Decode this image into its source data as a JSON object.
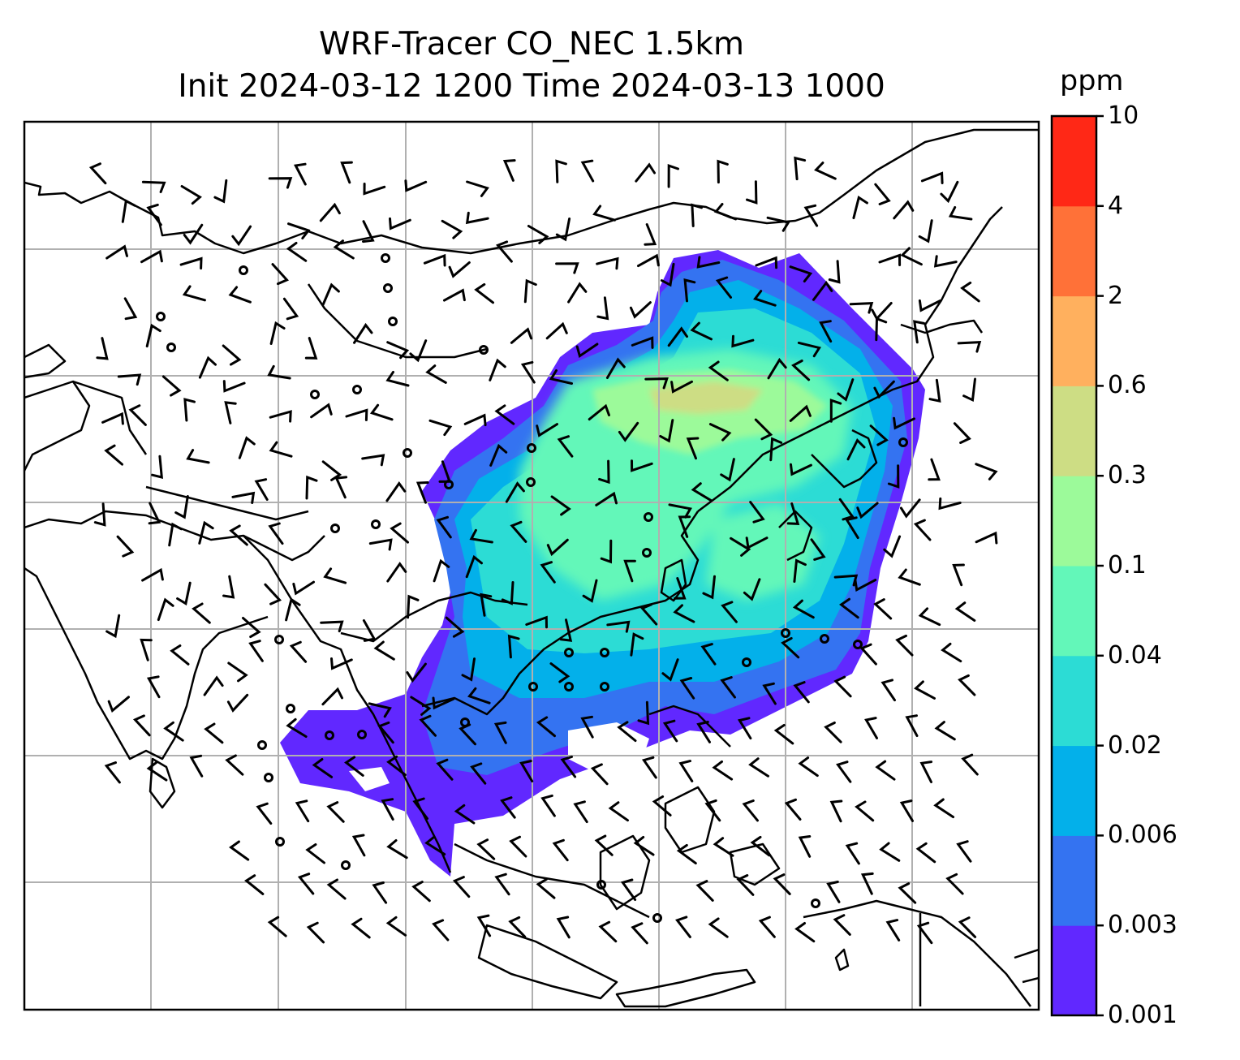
{
  "title": {
    "line1": "WRF-Tracer CO_NEC 1.5km",
    "line2": "Init 2024-03-12 1200 Time 2024-03-13 1000"
  },
  "colorbar": {
    "units": "ppm",
    "ticks": [
      "0.001",
      "0.003",
      "0.006",
      "0.02",
      "0.04",
      "0.1",
      "0.3",
      "0.6",
      "2",
      "4",
      "10"
    ],
    "colors": [
      "#6128ff",
      "#3473f1",
      "#03b0ea",
      "#2cdcd5",
      "#63f7b9",
      "#9cfa9a",
      "#cddd84",
      "#ffb05e",
      "#ff7138",
      "#ff2816"
    ]
  },
  "map": {
    "gridlines": true,
    "coastlines": true,
    "wind_barbs": true
  }
}
